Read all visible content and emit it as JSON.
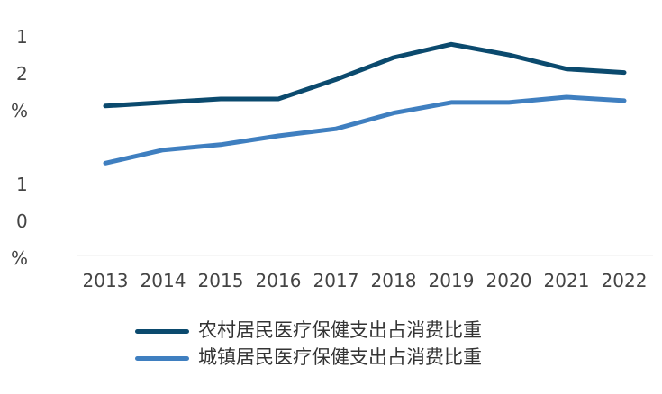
{
  "chart_data": {
    "type": "line",
    "categories": [
      "2013",
      "2014",
      "2015",
      "2016",
      "2017",
      "2018",
      "2019",
      "2020",
      "2021",
      "2022"
    ],
    "y_tick_labels": [
      "1\n2\n%",
      "1\n0\n%"
    ],
    "ylim": [
      9.8,
      12.5
    ],
    "grid": false,
    "legend_position": "bottom",
    "series": [
      {
        "name": "农村居民医疗保健支出占消费比重",
        "color": "#0b4a6e",
        "values": [
          11.5,
          11.54,
          11.58,
          11.58,
          11.8,
          12.05,
          12.2,
          12.08,
          11.92,
          11.88
        ]
      },
      {
        "name": "城镇居民医疗保健支出占消费比重",
        "color": "#3f7fc0",
        "values": [
          10.85,
          11.0,
          11.06,
          11.16,
          11.24,
          11.42,
          11.54,
          11.54,
          11.6,
          11.56
        ]
      }
    ]
  }
}
